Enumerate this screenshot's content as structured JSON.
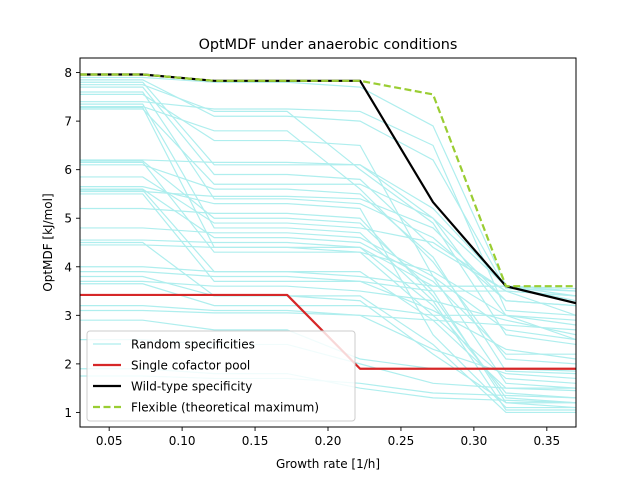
{
  "chart_data": {
    "type": "line",
    "title": "OptMDF under anaerobic conditions",
    "xlabel": "Growth rate [1/h]",
    "ylabel": "OptMDF [kJ/mol]",
    "xlim": [
      0.03,
      0.37
    ],
    "ylim": [
      0.7,
      8.3
    ],
    "xticks": [
      0.05,
      0.1,
      0.15,
      0.2,
      0.25,
      0.3,
      0.35
    ],
    "xtick_labels": [
      "0.05",
      "0.10",
      "0.15",
      "0.20",
      "0.25",
      "0.30",
      "0.35"
    ],
    "yticks": [
      1,
      2,
      3,
      4,
      5,
      6,
      7,
      8
    ],
    "ytick_labels": [
      "1",
      "2",
      "3",
      "4",
      "5",
      "6",
      "7",
      "8"
    ],
    "grid": false,
    "legend_position": "lower-left",
    "x": [
      0.03,
      0.073,
      0.122,
      0.172,
      0.222,
      0.272,
      0.322,
      0.37
    ],
    "series": [
      {
        "name": "Single cofactor pool",
        "color": "#d62728",
        "style": "solid",
        "values": [
          3.42,
          3.42,
          3.42,
          3.42,
          1.9,
          1.9,
          1.9,
          1.9
        ]
      },
      {
        "name": "Wild-type specificity",
        "color": "#000000",
        "style": "solid",
        "values": [
          7.96,
          7.96,
          7.83,
          7.83,
          7.83,
          5.33,
          3.6,
          3.25
        ]
      },
      {
        "name": "Flexible (theoretical maximum)",
        "color": "#9acd32",
        "style": "dashed",
        "values": [
          7.96,
          7.96,
          7.83,
          7.83,
          7.83,
          7.55,
          3.6,
          3.6
        ]
      }
    ],
    "random_series": {
      "name": "Random specificities",
      "color": "#afeeee",
      "style": "solid",
      "lines": [
        [
          7.9,
          7.9,
          7.8,
          7.8,
          7.7,
          6.9,
          3.6,
          3.55
        ],
        [
          7.85,
          7.85,
          7.1,
          7.1,
          7.0,
          6.2,
          3.55,
          3.5
        ],
        [
          7.8,
          7.8,
          6.1,
          6.1,
          6.1,
          5.0,
          3.6,
          3.3
        ],
        [
          7.75,
          7.75,
          7.2,
          7.2,
          6.0,
          4.9,
          2.6,
          2.4
        ],
        [
          7.7,
          7.7,
          5.9,
          5.9,
          5.8,
          4.4,
          3.5,
          3.4
        ],
        [
          7.6,
          7.6,
          5.4,
          5.4,
          5.3,
          4.6,
          3.3,
          3.2
        ],
        [
          7.55,
          7.55,
          6.6,
          6.6,
          6.5,
          3.8,
          1.6,
          1.5
        ],
        [
          7.4,
          7.4,
          7.25,
          7.25,
          7.2,
          6.5,
          3.1,
          3.0
        ],
        [
          7.35,
          7.35,
          4.8,
          4.8,
          4.7,
          3.3,
          1.05,
          1.05
        ],
        [
          7.3,
          7.3,
          6.8,
          6.8,
          5.6,
          4.1,
          2.1,
          2.0
        ],
        [
          7.28,
          7.28,
          4.4,
          4.4,
          4.4,
          3.2,
          1.4,
          1.3
        ],
        [
          7.25,
          7.25,
          5.7,
          5.7,
          5.7,
          5.0,
          3.0,
          2.5
        ],
        [
          6.2,
          6.2,
          6.15,
          6.15,
          6.1,
          5.2,
          3.6,
          3.5
        ],
        [
          6.18,
          6.18,
          5.0,
          5.0,
          4.9,
          3.5,
          1.2,
          1.2
        ],
        [
          6.15,
          6.15,
          4.3,
          4.3,
          4.3,
          3.9,
          3.0,
          2.8
        ],
        [
          6.1,
          6.1,
          5.6,
          5.6,
          5.5,
          4.2,
          1.85,
          1.8
        ],
        [
          5.85,
          5.85,
          4.9,
          4.9,
          4.8,
          4.5,
          3.5,
          3.4
        ],
        [
          5.65,
          5.65,
          5.3,
          5.3,
          5.2,
          2.6,
          1.1,
          1.1
        ],
        [
          5.6,
          5.6,
          4.6,
          4.6,
          4.5,
          3.7,
          2.2,
          2.2
        ],
        [
          5.58,
          5.58,
          3.9,
          3.9,
          3.9,
          2.9,
          1.5,
          1.45
        ],
        [
          5.55,
          5.55,
          5.45,
          5.45,
          5.4,
          4.8,
          3.3,
          3.2
        ],
        [
          5.5,
          5.5,
          3.7,
          3.7,
          3.7,
          3.5,
          3.5,
          3.0
        ],
        [
          5.2,
          5.2,
          5.1,
          5.1,
          5.0,
          3.4,
          1.3,
          1.2
        ],
        [
          4.8,
          4.8,
          4.7,
          4.7,
          4.6,
          3.8,
          2.7,
          2.5
        ],
        [
          4.55,
          4.55,
          4.5,
          4.5,
          4.4,
          3.6,
          3.6,
          3.4
        ],
        [
          4.5,
          4.5,
          3.4,
          3.4,
          3.4,
          2.4,
          1.0,
          1.0
        ],
        [
          4.45,
          4.45,
          4.4,
          4.4,
          4.3,
          3.0,
          1.7,
          1.6
        ],
        [
          4.0,
          4.0,
          3.9,
          3.9,
          3.8,
          3.6,
          3.6,
          3.5
        ],
        [
          3.9,
          3.9,
          3.8,
          3.8,
          3.7,
          3.1,
          2.3,
          2.1
        ],
        [
          3.8,
          3.8,
          3.4,
          3.4,
          3.3,
          2.2,
          1.2,
          1.1
        ],
        [
          3.7,
          3.7,
          3.6,
          3.6,
          3.5,
          3.3,
          2.9,
          2.6
        ],
        [
          3.65,
          3.65,
          3.2,
          3.2,
          3.2,
          3.0,
          3.0,
          2.9
        ],
        [
          3.2,
          3.2,
          3.1,
          3.1,
          3.0,
          2.9,
          2.8,
          2.7
        ],
        [
          3.1,
          3.1,
          3.05,
          3.05,
          3.0,
          2.3,
          1.8,
          1.7
        ],
        [
          2.9,
          2.9,
          2.7,
          2.7,
          2.1,
          1.9,
          1.9,
          1.85
        ],
        [
          2.5,
          2.5,
          2.4,
          2.4,
          2.0,
          1.6,
          1.5,
          1.5
        ],
        [
          1.9,
          1.9,
          1.8,
          1.8,
          1.5,
          1.3,
          1.25,
          1.2
        ],
        [
          1.75,
          1.75,
          1.7,
          1.7,
          1.6,
          1.4,
          1.35,
          1.3
        ]
      ]
    }
  }
}
